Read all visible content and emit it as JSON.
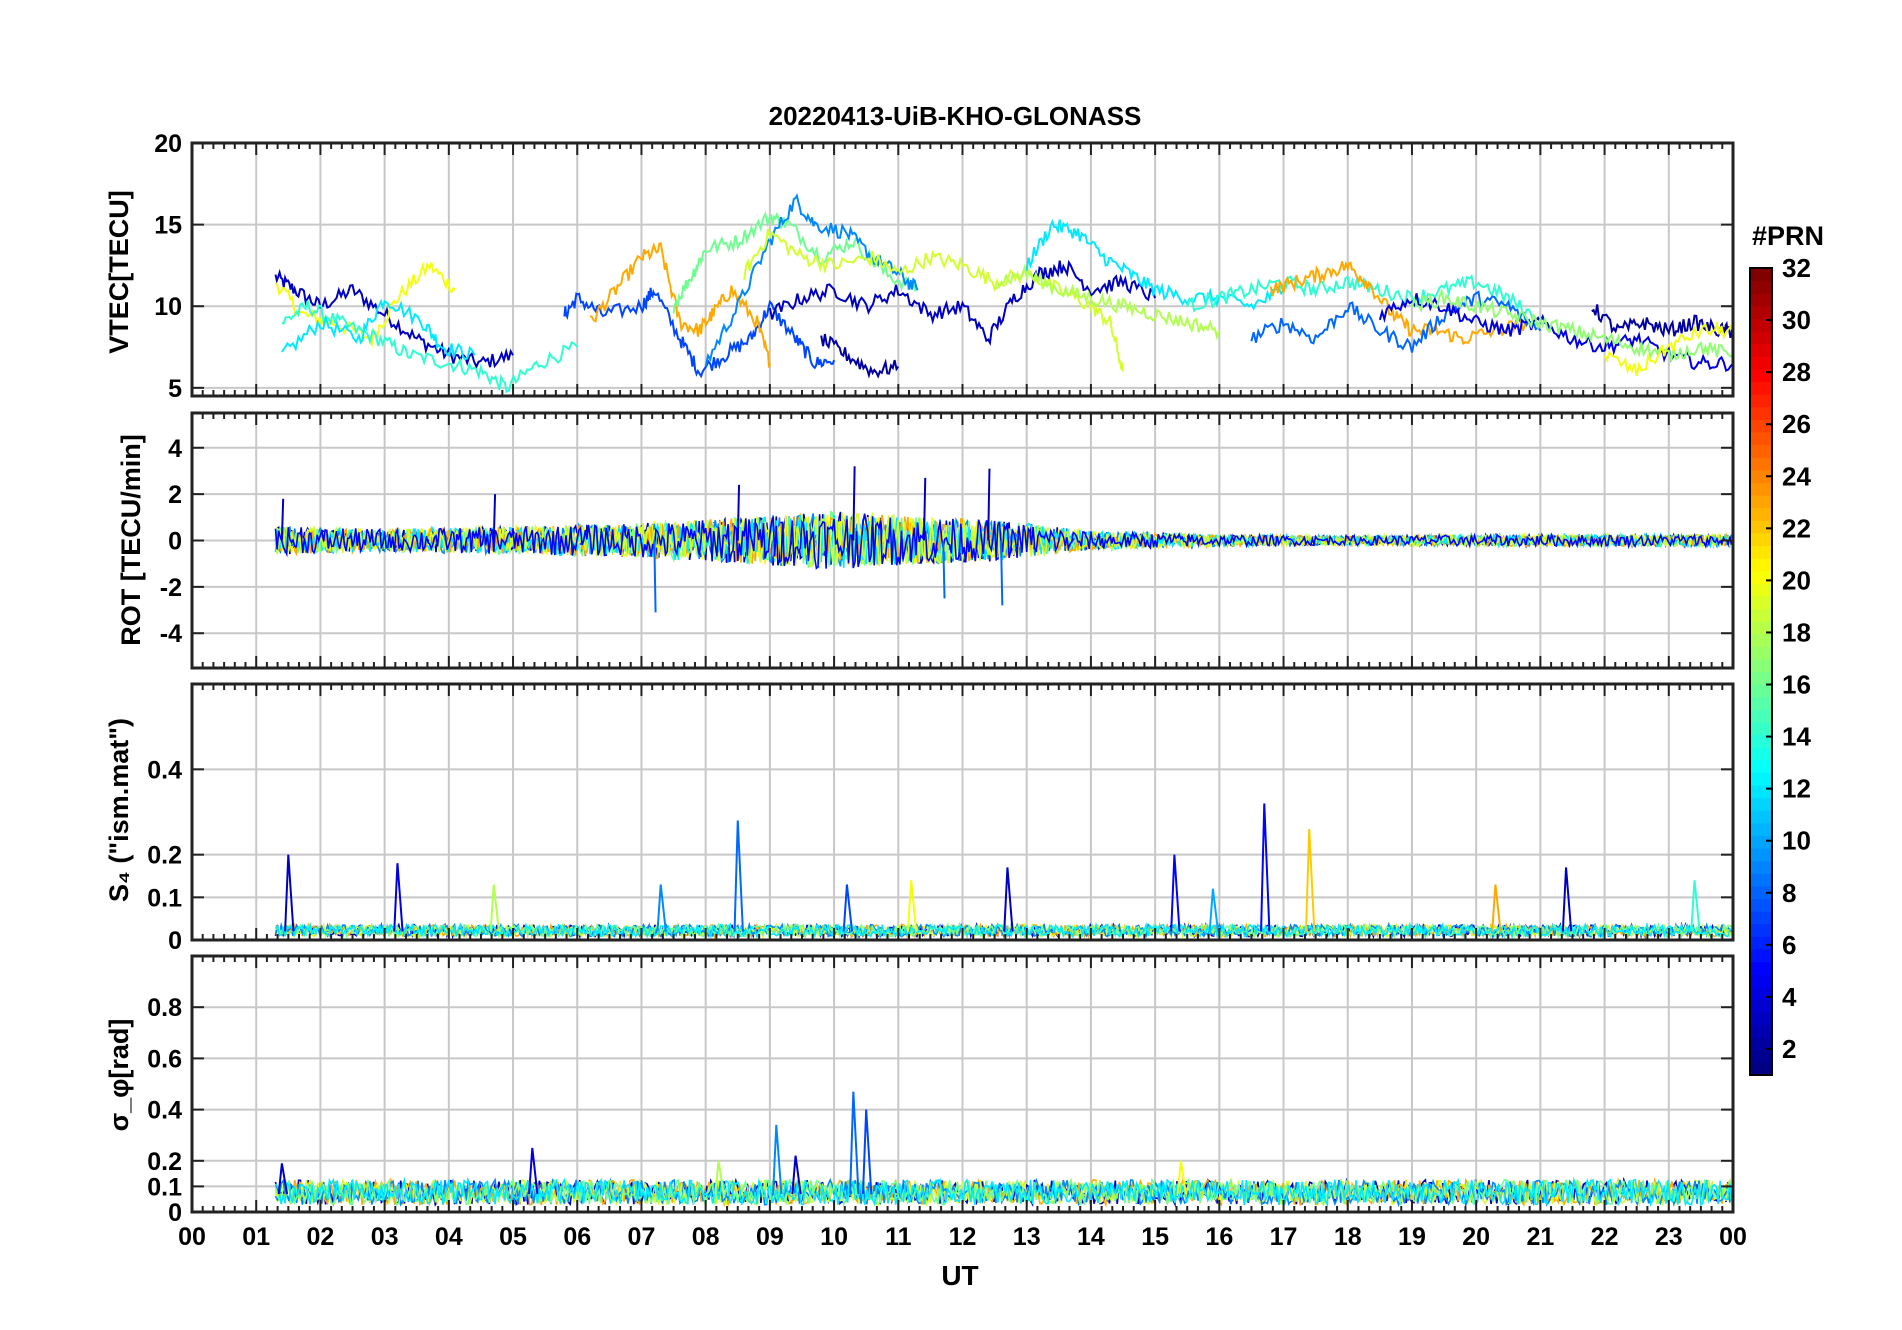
{
  "chart_data": [
    {
      "type": "line",
      "title": "20220413-UiB-KHO-GLONASS",
      "xlabel": "",
      "ylabel": "VTEC[TECU]",
      "ylim": [
        4.5,
        20
      ],
      "yticks": [
        5,
        10,
        15,
        20
      ],
      "grid": true,
      "series": [
        {
          "color_prn": 3,
          "x": [
            1.3,
            1.6,
            2.0,
            2.5,
            3.0,
            3.5,
            4.0,
            4.5,
            5.0
          ],
          "y": [
            11.8,
            11.0,
            10.0,
            11.0,
            9.5,
            8.0,
            7.0,
            6.5,
            7.0
          ]
        },
        {
          "color_prn": 20,
          "x": [
            1.3,
            1.7,
            2.2,
            2.8,
            3.2,
            3.7,
            4.1
          ],
          "y": [
            11.5,
            9.5,
            9.0,
            8.0,
            10.5,
            12.5,
            11.0
          ]
        },
        {
          "color_prn": 14,
          "x": [
            1.4,
            1.8,
            2.3,
            2.9,
            3.4,
            4.0,
            4.5,
            4.9,
            5.4,
            6.0
          ],
          "y": [
            9.0,
            10.0,
            9.0,
            8.0,
            7.0,
            6.5,
            6.0,
            5.0,
            6.5,
            7.5
          ]
        },
        {
          "color_prn": 12,
          "x": [
            1.4,
            2.0,
            2.6,
            3.0,
            3.6,
            3.9,
            4.4
          ],
          "y": [
            7.0,
            9.0,
            8.0,
            10.5,
            9.0,
            7.5,
            7.0
          ]
        },
        {
          "color_prn": 7,
          "x": [
            5.8,
            6.0,
            6.4,
            7.0,
            7.2,
            7.6,
            7.9,
            8.3,
            8.7,
            9.0,
            9.4,
            9.7,
            10.0
          ],
          "y": [
            9.5,
            10.5,
            9.5,
            10.0,
            11.0,
            8.0,
            6.0,
            7.0,
            8.0,
            10.0,
            8.0,
            6.5,
            6.7
          ]
        },
        {
          "color_prn": 23,
          "x": [
            6.2,
            6.6,
            7.0,
            7.3,
            7.6,
            7.9,
            8.1,
            8.4,
            8.8,
            9.0
          ],
          "y": [
            9.0,
            11.0,
            13.0,
            13.5,
            9.0,
            8.5,
            9.5,
            11.0,
            9.0,
            6.5
          ]
        },
        {
          "color_prn": 16,
          "x": [
            7.5,
            7.8,
            8.0,
            8.5,
            9.0,
            9.3,
            9.8,
            10.3,
            10.8,
            11.3
          ],
          "y": [
            10.0,
            12.0,
            13.5,
            14.0,
            15.5,
            15.0,
            13.0,
            14.0,
            12.0,
            11.0
          ]
        },
        {
          "color_prn": 9,
          "x": [
            8.0,
            8.5,
            9.0,
            9.4,
            9.7,
            10.2,
            10.6,
            11.0,
            11.3
          ],
          "y": [
            6.5,
            10.0,
            14.0,
            16.5,
            15.0,
            14.5,
            13.0,
            12.0,
            11.0
          ]
        },
        {
          "color_prn": 19,
          "x": [
            8.6,
            9.0,
            9.5,
            10.0,
            10.6,
            11.0,
            11.5,
            12.0,
            12.5,
            13.0,
            13.5,
            14.0,
            14.3,
            14.5
          ],
          "y": [
            12.0,
            14.5,
            13.0,
            12.5,
            13.0,
            12.0,
            13.0,
            12.5,
            11.5,
            12.0,
            11.0,
            10.0,
            9.0,
            6.0
          ]
        },
        {
          "color_prn": 3,
          "x": [
            9.0,
            9.5,
            10.0,
            10.5,
            11.0,
            11.5,
            12.0,
            12.4,
            12.8,
            13.2,
            13.6,
            14.0,
            14.5,
            15.0
          ],
          "y": [
            9.5,
            10.5,
            11.0,
            10.0,
            11.0,
            9.5,
            10.0,
            8.0,
            10.5,
            12.0,
            12.5,
            11.0,
            11.5,
            10.5
          ]
        },
        {
          "color_prn": 2,
          "x": [
            9.8,
            10.2,
            10.6,
            11.0
          ],
          "y": [
            8.0,
            7.0,
            6.0,
            6.3
          ]
        },
        {
          "color_prn": 12,
          "x": [
            13.0,
            13.4,
            13.8,
            14.2,
            14.6,
            15.0,
            15.5,
            16.0,
            16.5,
            17.0
          ],
          "y": [
            12.5,
            15.0,
            14.5,
            13.0,
            12.0,
            11.0,
            10.5,
            10.5,
            10.0,
            11.0
          ]
        },
        {
          "color_prn": 18,
          "x": [
            12.5,
            13.0,
            13.5,
            14.0,
            14.5,
            15.0,
            15.5,
            16.0
          ],
          "y": [
            11.5,
            12.0,
            11.0,
            10.5,
            10.0,
            9.5,
            9.0,
            8.5
          ]
        },
        {
          "color_prn": 14,
          "x": [
            15.5,
            16.0,
            16.5,
            17.0,
            17.5,
            18.0,
            18.5,
            19.0,
            19.5,
            20.0,
            20.5,
            21.0
          ],
          "y": [
            10.0,
            10.5,
            11.0,
            11.5,
            11.0,
            11.5,
            11.0,
            10.5,
            11.0,
            11.5,
            10.5,
            9.0
          ]
        },
        {
          "color_prn": 23,
          "x": [
            16.8,
            17.2,
            17.6,
            18.0,
            18.3,
            18.7,
            19.0,
            19.4,
            19.8,
            20.3,
            20.8
          ],
          "y": [
            11.0,
            11.5,
            12.0,
            12.5,
            11.5,
            9.5,
            8.5,
            8.5,
            8.0,
            8.5,
            9.0
          ]
        },
        {
          "color_prn": 8,
          "x": [
            16.5,
            17.0,
            17.5,
            18.0,
            18.5,
            19.0,
            19.5,
            20.0,
            20.5,
            21.0
          ],
          "y": [
            8.0,
            9.0,
            8.0,
            10.0,
            8.5,
            7.5,
            9.5,
            10.5,
            10.0,
            8.5
          ]
        },
        {
          "color_prn": 4,
          "x": [
            18.5,
            19.0,
            19.5,
            20.0,
            20.5,
            21.0,
            21.5,
            22.0,
            22.5,
            23.0,
            23.5,
            24.0
          ],
          "y": [
            9.5,
            10.5,
            10.0,
            9.0,
            8.5,
            9.0,
            8.0,
            7.5,
            8.0,
            7.0,
            6.5,
            6.5
          ]
        },
        {
          "color_prn": 17,
          "x": [
            19.0,
            19.5,
            20.0,
            20.5,
            21.0,
            21.5,
            22.0,
            22.5,
            23.0,
            23.5,
            24.0
          ],
          "y": [
            10.0,
            10.5,
            10.0,
            9.5,
            9.0,
            8.5,
            8.0,
            7.5,
            7.0,
            7.5,
            7.0
          ]
        },
        {
          "color_prn": 2,
          "x": [
            21.8,
            22.2,
            22.6,
            23.0,
            23.4,
            23.8,
            24.0
          ],
          "y": [
            10.0,
            8.5,
            9.0,
            8.5,
            9.0,
            8.5,
            8.5
          ]
        },
        {
          "color_prn": 20,
          "x": [
            22.0,
            22.5,
            23.0,
            23.5,
            24.0
          ],
          "y": [
            7.0,
            6.0,
            7.5,
            8.5,
            8.5
          ]
        }
      ]
    },
    {
      "type": "line",
      "title": "",
      "xlabel": "",
      "ylabel": "ROT [TECU/min]",
      "ylim": [
        -5.5,
        5.5
      ],
      "yticks": [
        -4,
        -2,
        0,
        2,
        4
      ],
      "grid": true,
      "envelope_amplitude": [
        [
          1.3,
          1.2
        ],
        [
          3.0,
          1.0
        ],
        [
          5.0,
          1.2
        ],
        [
          7.0,
          1.5
        ],
        [
          8.5,
          2.0
        ],
        [
          10.0,
          2.5
        ],
        [
          11.5,
          2.0
        ],
        [
          12.5,
          1.8
        ],
        [
          14.0,
          0.8
        ],
        [
          16.0,
          0.5
        ],
        [
          18.0,
          0.4
        ],
        [
          20.0,
          0.5
        ],
        [
          22.0,
          0.5
        ],
        [
          24.0,
          0.5
        ]
      ],
      "spikes": [
        [
          7.2,
          -3.1
        ],
        [
          10.3,
          3.2
        ],
        [
          11.4,
          2.7
        ],
        [
          11.7,
          -2.5
        ],
        [
          12.4,
          3.1
        ],
        [
          12.6,
          -2.8
        ],
        [
          8.5,
          2.4
        ],
        [
          4.7,
          2.0
        ],
        [
          1.4,
          1.8
        ]
      ]
    },
    {
      "type": "line",
      "title": "",
      "xlabel": "",
      "ylabel": "S₄ (\"ism.mat\")",
      "ylim": [
        0,
        0.6
      ],
      "yticks": [
        0,
        0.1,
        0.2,
        0.4
      ],
      "grid": true,
      "baseline_level": 0.02,
      "spikes": [
        [
          1.5,
          0.2
        ],
        [
          3.2,
          0.18
        ],
        [
          4.7,
          0.13
        ],
        [
          7.3,
          0.13
        ],
        [
          8.5,
          0.28
        ],
        [
          10.2,
          0.13
        ],
        [
          11.2,
          0.14
        ],
        [
          12.7,
          0.17
        ],
        [
          15.3,
          0.2
        ],
        [
          15.9,
          0.12
        ],
        [
          16.7,
          0.32
        ],
        [
          17.4,
          0.26
        ],
        [
          20.3,
          0.13
        ],
        [
          21.4,
          0.17
        ],
        [
          23.4,
          0.14
        ]
      ]
    },
    {
      "type": "line",
      "title": "",
      "xlabel": "UT",
      "ylabel": "σ_φ[rad]",
      "ylim": [
        0,
        1
      ],
      "yticks": [
        0,
        0.1,
        0.2,
        0.4,
        0.6,
        0.8
      ],
      "grid": true,
      "baseline_level": 0.07,
      "spikes": [
        [
          1.4,
          0.19
        ],
        [
          5.3,
          0.25
        ],
        [
          8.2,
          0.2
        ],
        [
          9.1,
          0.34
        ],
        [
          10.3,
          0.47
        ],
        [
          10.5,
          0.4
        ],
        [
          15.4,
          0.2
        ],
        [
          9.4,
          0.22
        ]
      ]
    }
  ],
  "x_axis": {
    "xlim": [
      0,
      24
    ],
    "ticks": [
      "00",
      "01",
      "02",
      "03",
      "04",
      "05",
      "06",
      "07",
      "08",
      "09",
      "10",
      "11",
      "12",
      "13",
      "14",
      "15",
      "16",
      "17",
      "18",
      "19",
      "20",
      "21",
      "22",
      "23",
      "00"
    ],
    "label": "UT"
  },
  "colorbar": {
    "title": "#PRN",
    "range": [
      1,
      32
    ],
    "ticks": [
      "2",
      "4",
      "6",
      "8",
      "10",
      "12",
      "14",
      "16",
      "18",
      "20",
      "22",
      "24",
      "26",
      "28",
      "30",
      "32"
    ],
    "colormap": "jet"
  }
}
